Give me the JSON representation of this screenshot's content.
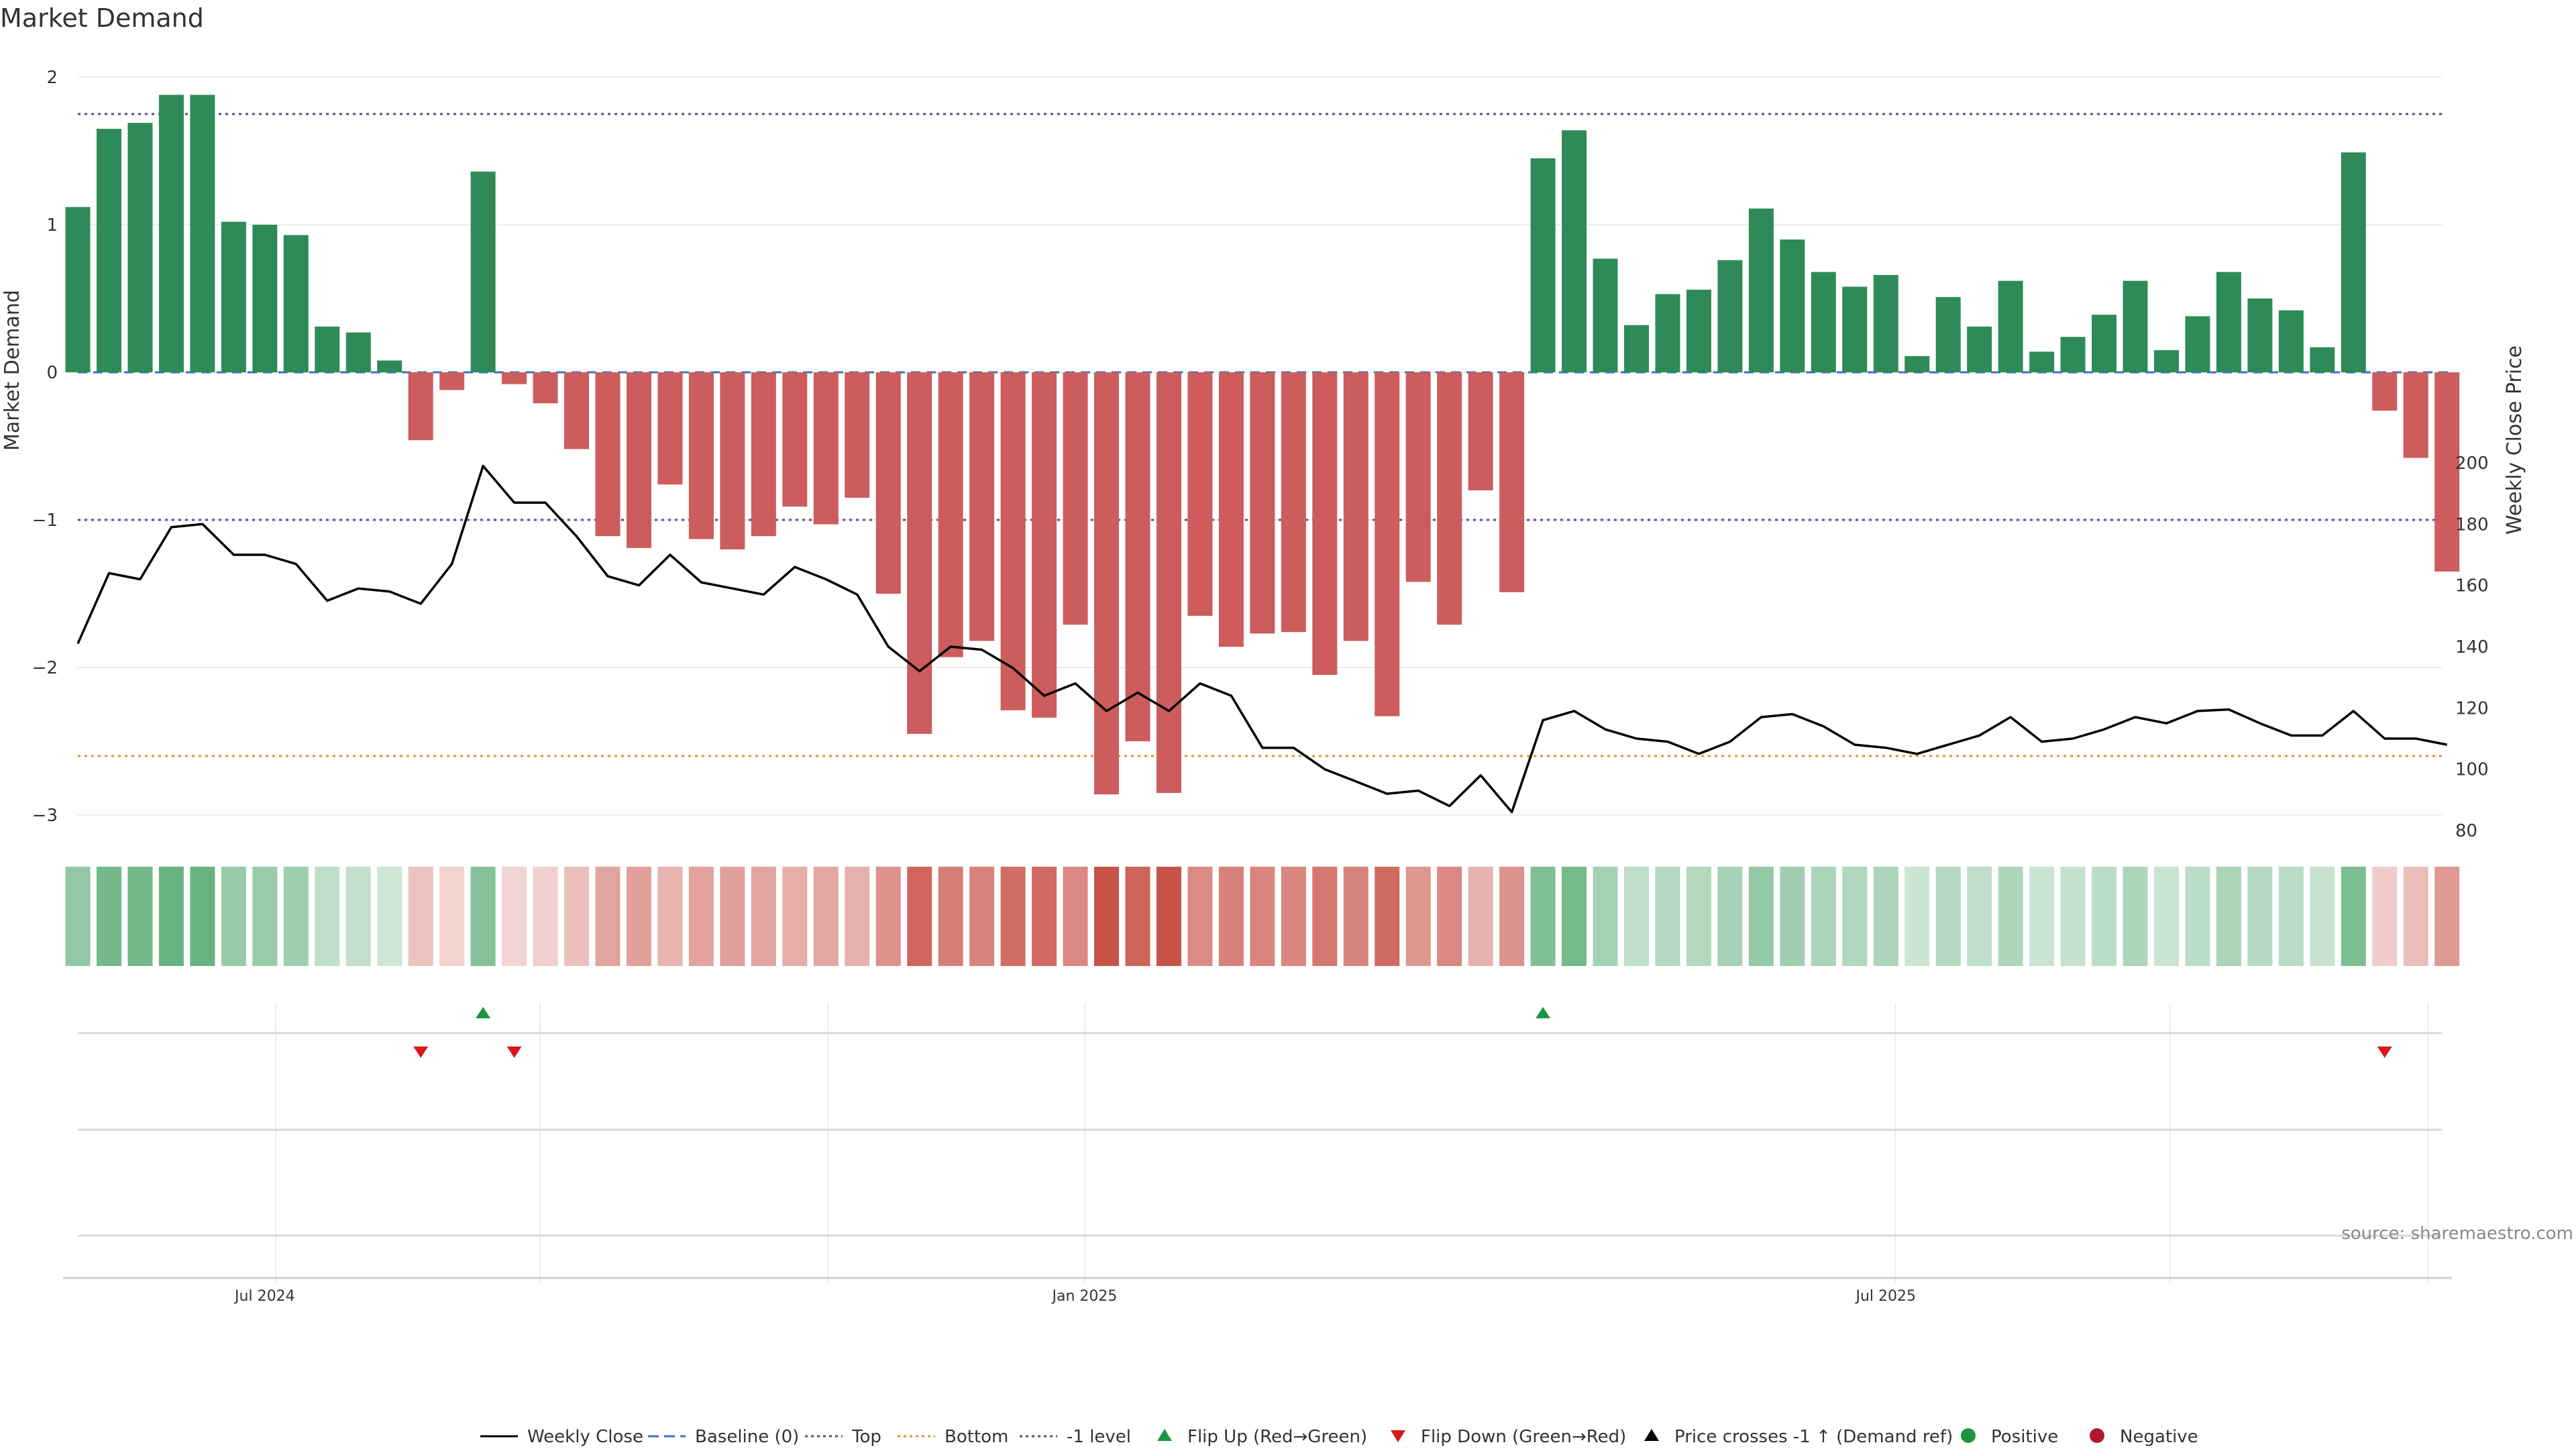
{
  "chart_data": {
    "type": "bar",
    "title": "Market Demand",
    "ylabel": "Market Demand",
    "y2label": "Weekly Close Price",
    "ylim": [
      -3,
      2
    ],
    "y2lim": [
      80,
      200
    ],
    "y_ticks": [
      2,
      1,
      0,
      -1,
      -2,
      -3
    ],
    "y_tick_labels": [
      "2",
      "1",
      "0",
      "−1",
      "−2",
      "−3"
    ],
    "y2_ticks": [
      200,
      180,
      160,
      140,
      120,
      100,
      80
    ],
    "x_tick_labels": [
      {
        "label": "Jul 2024",
        "week": 6
      },
      {
        "label": "Jan 2025",
        "week": 32.3
      },
      {
        "label": "Jul 2025",
        "week": 58
      }
    ],
    "reference_lines": [
      {
        "name": "Top",
        "value": 1.75,
        "color": "#5b4a8a"
      },
      {
        "name": "Bottom",
        "value": -2.6,
        "color": "#e8912d"
      },
      {
        "name": "-1 level",
        "value": -1,
        "color": "#5b4a8a"
      },
      {
        "name": "Baseline (0)",
        "value": 0,
        "color": "#3b6fd1"
      }
    ],
    "series": [
      {
        "name": "Market Demand",
        "type": "bar",
        "values": [
          1.12,
          1.65,
          1.69,
          1.88,
          1.88,
          1.02,
          1.0,
          0.93,
          0.31,
          0.27,
          0.08,
          -0.46,
          -0.12,
          1.36,
          -0.08,
          -0.21,
          -0.52,
          -1.11,
          -1.19,
          -0.76,
          -1.13,
          -1.2,
          -1.11,
          -0.91,
          -1.03,
          -0.85,
          -1.5,
          -2.45,
          -1.93,
          -1.82,
          -2.29,
          -2.34,
          -1.71,
          -2.86,
          -2.5,
          -2.85,
          -1.65,
          -1.86,
          -1.77,
          -1.76,
          -2.05,
          -1.82,
          -2.33,
          -1.42,
          -1.71,
          -0.8,
          -1.49,
          1.45,
          1.64,
          0.77,
          0.32,
          0.53,
          0.56,
          0.76,
          1.11,
          0.9,
          0.68,
          0.58,
          0.66,
          0.11,
          0.51,
          0.31,
          0.62,
          0.14,
          0.24,
          0.39,
          0.62,
          0.15,
          0.38,
          0.68,
          0.5,
          0.42,
          0.17,
          1.49,
          -0.26,
          -0.58,
          -1.35
        ]
      },
      {
        "name": "Weekly Close",
        "type": "line",
        "values": [
          141,
          164,
          162,
          179,
          180,
          170,
          170,
          167,
          155,
          159,
          158,
          154,
          167,
          199,
          187,
          187,
          176,
          163,
          160,
          170,
          161,
          159,
          157,
          166,
          162,
          157,
          140,
          132,
          140,
          139,
          133,
          124,
          128,
          119,
          125,
          119,
          128,
          124,
          107,
          107,
          100,
          96,
          92,
          93,
          88,
          98,
          86,
          116,
          119,
          113,
          110,
          109,
          105,
          109,
          117,
          118,
          114,
          108,
          107,
          105,
          108,
          111,
          117,
          109,
          110,
          113,
          117,
          115,
          119,
          119.5,
          115,
          111,
          111,
          119,
          110,
          110,
          108
        ]
      }
    ],
    "flip_up_weeks": [
      13,
      47
    ],
    "flip_down_weeks": [
      11,
      14,
      74
    ],
    "legend": [
      {
        "label": "Weekly Close",
        "marker": "line",
        "color": "#000000"
      },
      {
        "label": "Baseline (0)",
        "marker": "dash",
        "color": "#3b6fd1"
      },
      {
        "label": "Top",
        "marker": "dot",
        "color": "#5b4a8a"
      },
      {
        "label": "Bottom",
        "marker": "dot",
        "color": "#e8912d"
      },
      {
        "label": "-1 level",
        "marker": "dot",
        "color": "#5b4a8a"
      },
      {
        "label": "Flip Up (Red→Green)",
        "marker": "tri-up",
        "color": "#1a9641"
      },
      {
        "label": "Flip Down (Green→Red)",
        "marker": "tri-down",
        "color": "#d7191c"
      },
      {
        "label": "Price crosses -1 ↑ (Demand ref)",
        "marker": "tri-up",
        "color": "#000000"
      },
      {
        "label": "Positive",
        "marker": "circle",
        "color": "#1a9641"
      },
      {
        "label": "Negative",
        "marker": "circle",
        "color": "#b2182b"
      }
    ],
    "legend_position": "bottom-center",
    "colors": {
      "positive": "#2e8b57",
      "negative": "#cd5c5c"
    }
  },
  "source": "source: sharemaestro.com"
}
